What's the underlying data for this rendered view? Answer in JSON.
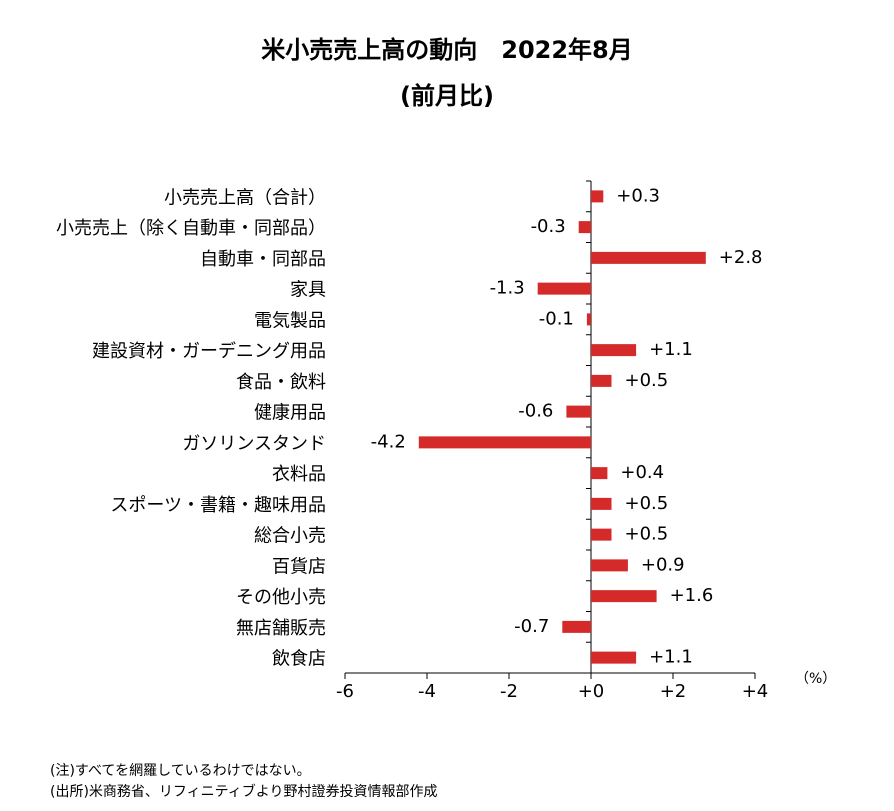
{
  "chart_data": {
    "type": "bar",
    "orientation": "horizontal",
    "title": "米小売売上高の動向　2022年8月",
    "subtitle": "(前月比)",
    "unit_label": "（%）",
    "xlim": [
      -6,
      4
    ],
    "xticks": [
      "-6",
      "-4",
      "-2",
      "+0",
      "+2",
      "+4"
    ],
    "bar_color": "#d42a2a",
    "categories": [
      "小売売上高（合計）",
      "小売売上（除く自動車・同部品）",
      "自動車・同部品",
      "家具",
      "電気製品",
      "建設資材・ガーデニング用品",
      "食品・飲料",
      "健康用品",
      "ガソリンスタンド",
      "衣料品",
      "スポーツ・書籍・趣味用品",
      "総合小売",
      "百貨店",
      "その他小売",
      "無店舗販売",
      "飲食店"
    ],
    "values": [
      0.3,
      -0.3,
      2.8,
      -1.3,
      -0.1,
      1.1,
      0.5,
      -0.6,
      -4.2,
      0.4,
      0.5,
      0.5,
      0.9,
      1.6,
      -0.7,
      1.1
    ],
    "value_labels": [
      "+0.3",
      "-0.3",
      "+2.8",
      "-1.3",
      "-0.1",
      "+1.1",
      "+0.5",
      "-0.6",
      "-4.2",
      "+0.4",
      "+0.5",
      "+0.5",
      "+0.9",
      "+1.6",
      "-0.7",
      "+1.1"
    ]
  },
  "notes": {
    "note1": "(注)すべてを網羅しているわけではない。",
    "note2": "(出所)米商務省、リフィニティブより野村證券投資情報部作成"
  }
}
